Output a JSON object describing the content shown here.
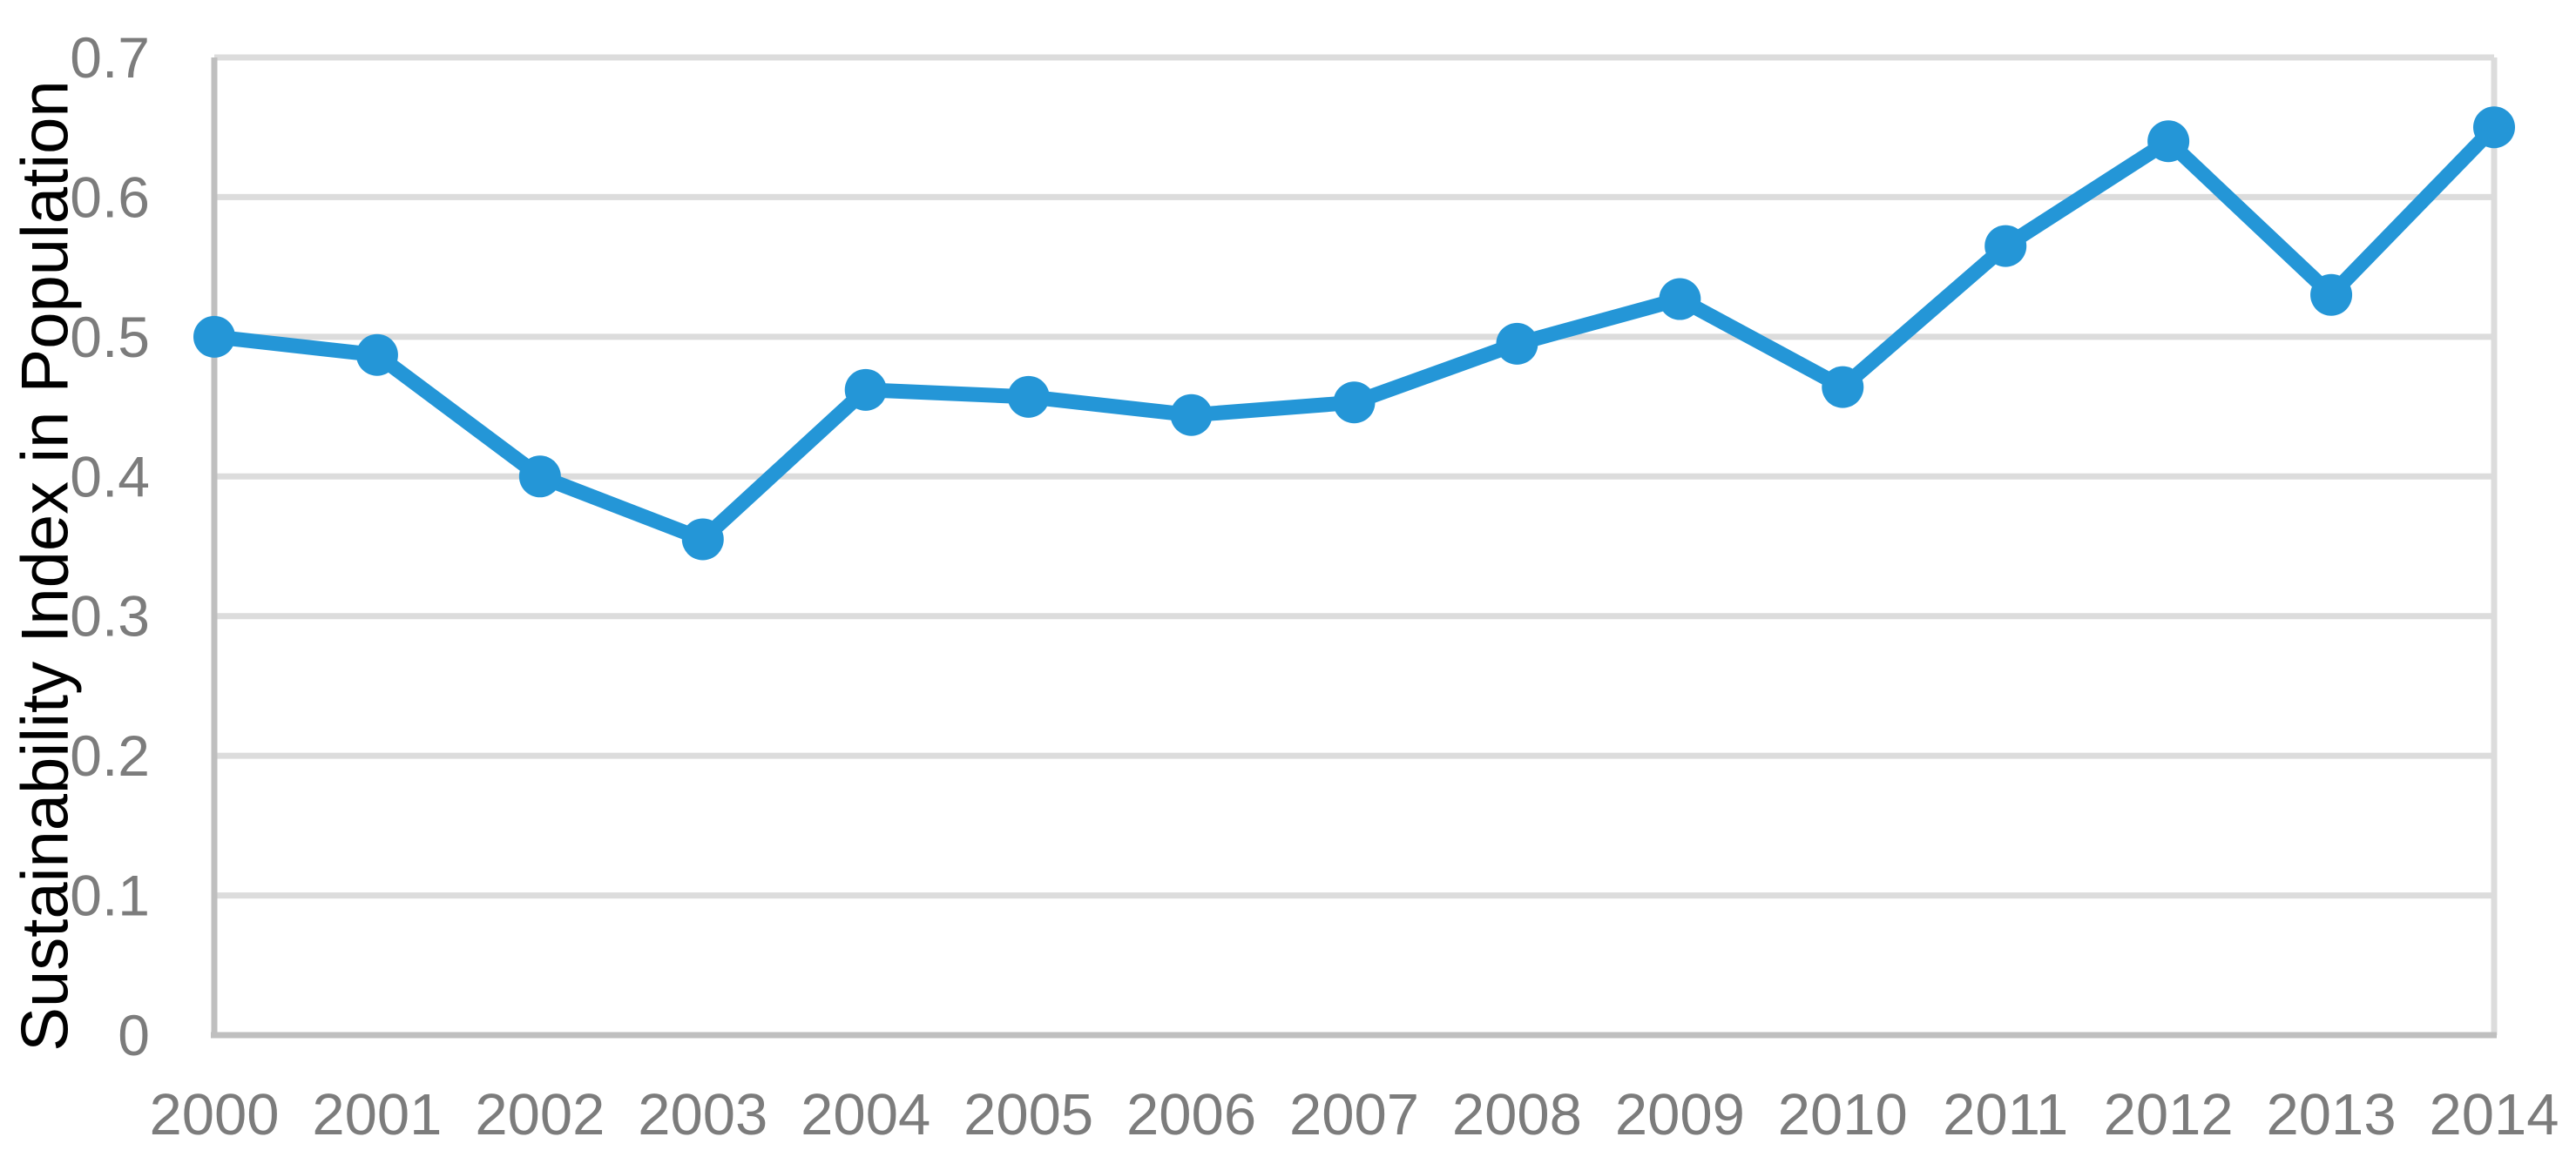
{
  "chart_data": {
    "type": "line",
    "title": "",
    "xlabel": "",
    "ylabel": "Sustainability Index in Population",
    "categories": [
      "2000",
      "2001",
      "2002",
      "2003",
      "2004",
      "2005",
      "2006",
      "2007",
      "2008",
      "2009",
      "2010",
      "2011",
      "2012",
      "2013",
      "2014"
    ],
    "series": [
      {
        "name": "Sustainability Index",
        "values": [
          0.5,
          0.487,
          0.4,
          0.355,
          0.462,
          0.457,
          0.444,
          0.453,
          0.495,
          0.527,
          0.464,
          0.565,
          0.64,
          0.53,
          0.65
        ]
      }
    ],
    "ylim": [
      0,
      0.7
    ],
    "ytick_step": 0.1,
    "ytick_labels": [
      "0",
      "0.1",
      "0.2",
      "0.3",
      "0.4",
      "0.5",
      "0.6",
      "0.7"
    ],
    "grid": "horizontal",
    "legend": false,
    "style": {
      "line_color": "#2496D7",
      "marker_color": "#2496D7",
      "gridline_color": "#DCDCDC",
      "axis_line_color": "#BFBFBF",
      "tick_label_color": "#7C7C7C",
      "ylabel_color": "#000000",
      "background": "#FFFFFF"
    }
  }
}
